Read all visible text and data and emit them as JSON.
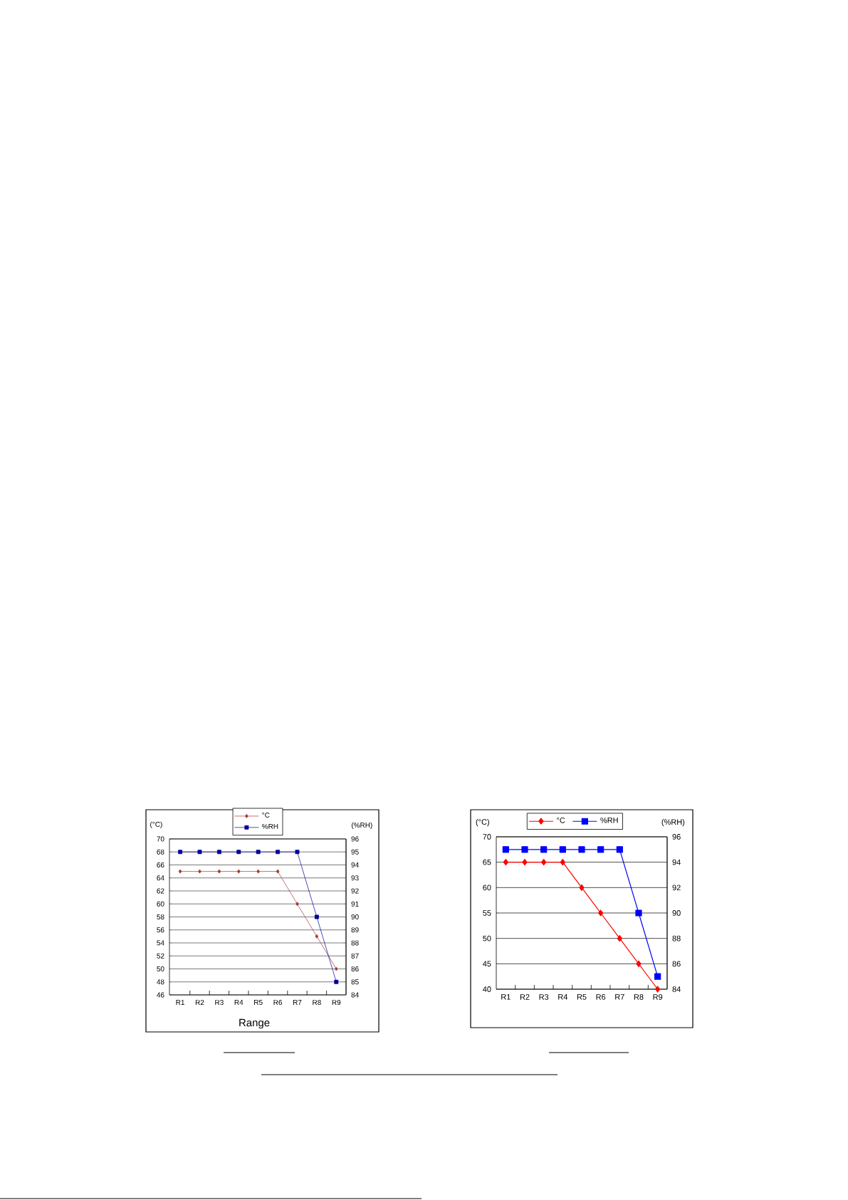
{
  "chart_data": [
    {
      "type": "line",
      "xlabel": "Range",
      "ylabel": "(°C)",
      "y2label": "(%RH)",
      "categories": [
        "R1",
        "R2",
        "R3",
        "R4",
        "R5",
        "R6",
        "R7",
        "R8",
        "R9"
      ],
      "series": [
        {
          "name": "°C",
          "color": "#a33a33",
          "marker": "diamond",
          "values": [
            65,
            65,
            65,
            65,
            65,
            65,
            60,
            55,
            50
          ]
        },
        {
          "name": "%RH",
          "color": "#00009a",
          "marker": "square",
          "axis": "y2",
          "values": [
            95,
            95,
            95,
            95,
            95,
            95,
            95,
            90,
            85
          ]
        }
      ],
      "ylim": [
        46,
        70
      ],
      "yticks": [
        46,
        48,
        50,
        52,
        54,
        56,
        58,
        60,
        62,
        64,
        66,
        68,
        70
      ],
      "y2lim": [
        84,
        96
      ],
      "y2ticks": [
        84,
        85,
        86,
        87,
        88,
        89,
        90,
        91,
        92,
        93,
        94,
        95,
        96
      ],
      "grid": "y",
      "legend": "top"
    },
    {
      "type": "line",
      "ylabel": "(°C)",
      "y2label": "(%RH)",
      "categories": [
        "R1",
        "R2",
        "R3",
        "R4",
        "R5",
        "R6",
        "R7",
        "R8",
        "R9"
      ],
      "series": [
        {
          "name": "°C",
          "color": "#ff0000",
          "marker": "diamond",
          "values": [
            65,
            65,
            65,
            65,
            60,
            55,
            50,
            45,
            40
          ]
        },
        {
          "name": "%RH",
          "color": "#0000ff",
          "marker": "square",
          "axis": "y2",
          "values": [
            95,
            95,
            95,
            95,
            95,
            95,
            95,
            90,
            85
          ]
        }
      ],
      "ylim": [
        40,
        70
      ],
      "yticks": [
        40,
        45,
        50,
        55,
        60,
        65,
        70
      ],
      "y2lim": [
        84,
        96
      ],
      "y2ticks": [
        84,
        86,
        88,
        90,
        92,
        94,
        96
      ],
      "grid": "y",
      "legend": "top"
    }
  ]
}
